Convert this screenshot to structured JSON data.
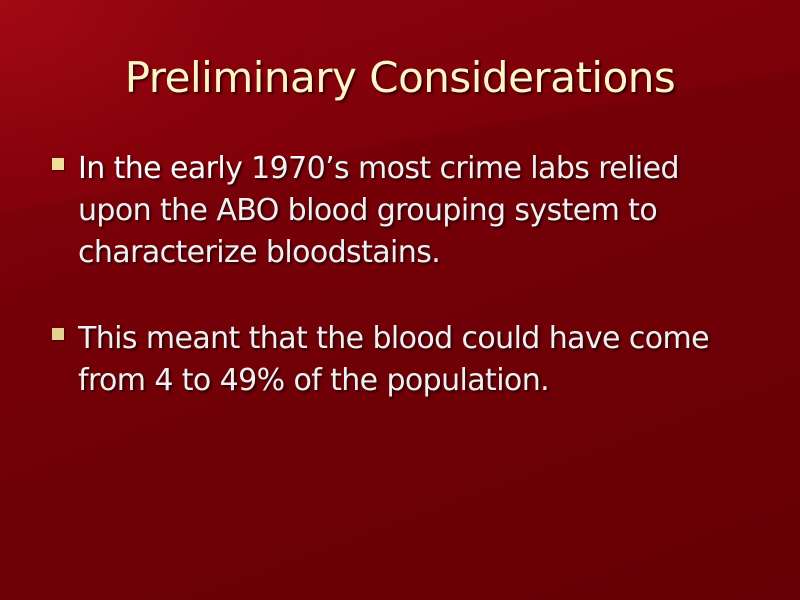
{
  "slide": {
    "title": "Preliminary Considerations",
    "bullets": [
      {
        "text": "In the early 1970’s most crime labs relied upon the ABO blood grouping system to characterize bloodstains."
      },
      {
        "text": "This meant that the blood could have come from 4 to 49% of the population."
      }
    ]
  },
  "colors": {
    "background": "#7d0008",
    "title": "#fff5c8",
    "body_text": "#ffffff",
    "bullet": "#f2df9a"
  }
}
